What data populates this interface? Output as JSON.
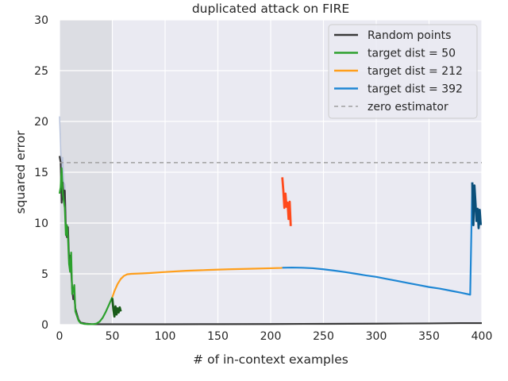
{
  "chart_data": {
    "type": "line",
    "title": "duplicated attack on FIRE",
    "xlabel": "# of in-context examples",
    "ylabel": "squared error",
    "xlim": [
      0,
      400
    ],
    "ylim": [
      0,
      30
    ],
    "xticks": [
      0,
      50,
      100,
      150,
      200,
      250,
      300,
      350,
      400
    ],
    "yticks": [
      0,
      5,
      10,
      15,
      20,
      25,
      30
    ],
    "grid": true,
    "legend_position": "top-right",
    "shaded_region": {
      "x": [
        0,
        50
      ],
      "color": "#dcdde3"
    },
    "colors": {
      "background": "#eaeaf2",
      "grid": "#ffffff"
    },
    "series": [
      {
        "name": "Random points",
        "color": "#3a3a3a",
        "values": [
          [
            0,
            16.6
          ],
          [
            1,
            16.0
          ],
          [
            2,
            12.0
          ],
          [
            3,
            14.0
          ],
          [
            4,
            12.5
          ],
          [
            5,
            13.2
          ],
          [
            6,
            9.5
          ],
          [
            7,
            8.6
          ],
          [
            8,
            9.6
          ],
          [
            9,
            6.5
          ],
          [
            10,
            6.8
          ],
          [
            11,
            5.4
          ],
          [
            12,
            3.5
          ],
          [
            13,
            2.5
          ],
          [
            14,
            2.8
          ],
          [
            15,
            1.6
          ],
          [
            16,
            1.2
          ],
          [
            18,
            0.5
          ],
          [
            20,
            0.2
          ],
          [
            25,
            0.1
          ],
          [
            30,
            0.05
          ],
          [
            40,
            0.04
          ],
          [
            50,
            0.04
          ],
          [
            100,
            0.04
          ],
          [
            150,
            0.05
          ],
          [
            200,
            0.06
          ],
          [
            250,
            0.08
          ],
          [
            300,
            0.1
          ],
          [
            350,
            0.12
          ],
          [
            380,
            0.15
          ],
          [
            400,
            0.15
          ]
        ]
      },
      {
        "name": "target dist = 50",
        "color": "#2ca02c",
        "values": [
          [
            0,
            12.9
          ],
          [
            1,
            13.5
          ],
          [
            2,
            15.4
          ],
          [
            3,
            13.0
          ],
          [
            4,
            12.2
          ],
          [
            5,
            11.5
          ],
          [
            6,
            8.8
          ],
          [
            7,
            9.8
          ],
          [
            8,
            8.5
          ],
          [
            9,
            6.0
          ],
          [
            10,
            5.2
          ],
          [
            11,
            7.1
          ],
          [
            12,
            3.0
          ],
          [
            13,
            3.3
          ],
          [
            14,
            3.9
          ],
          [
            15,
            1.3
          ],
          [
            16,
            1.0
          ],
          [
            18,
            0.4
          ],
          [
            20,
            0.15
          ],
          [
            23,
            0.08
          ],
          [
            27,
            0.05
          ],
          [
            32,
            0.05
          ],
          [
            35,
            0.1
          ],
          [
            38,
            0.3
          ],
          [
            41,
            0.7
          ],
          [
            44,
            1.3
          ],
          [
            47,
            2.0
          ],
          [
            50,
            2.7
          ]
        ]
      },
      {
        "name": "target dist = 212",
        "color": "#ff9f1c",
        "values": [
          [
            50,
            2.7
          ],
          [
            52,
            3.3
          ],
          [
            55,
            4.0
          ],
          [
            58,
            4.5
          ],
          [
            61,
            4.8
          ],
          [
            64,
            4.95
          ],
          [
            68,
            5.0
          ],
          [
            75,
            5.03
          ],
          [
            85,
            5.08
          ],
          [
            100,
            5.18
          ],
          [
            120,
            5.3
          ],
          [
            140,
            5.38
          ],
          [
            160,
            5.45
          ],
          [
            180,
            5.5
          ],
          [
            200,
            5.55
          ],
          [
            210,
            5.58
          ],
          [
            211,
            5.6
          ]
        ]
      },
      {
        "name": "target dist = 392",
        "color": "#1f87d4",
        "values": [
          [
            211,
            5.6
          ],
          [
            220,
            5.62
          ],
          [
            230,
            5.6
          ],
          [
            240,
            5.55
          ],
          [
            250,
            5.45
          ],
          [
            260,
            5.32
          ],
          [
            270,
            5.18
          ],
          [
            280,
            5.02
          ],
          [
            290,
            4.85
          ],
          [
            300,
            4.7
          ],
          [
            310,
            4.5
          ],
          [
            320,
            4.3
          ],
          [
            330,
            4.1
          ],
          [
            340,
            3.9
          ],
          [
            350,
            3.7
          ],
          [
            360,
            3.55
          ],
          [
            370,
            3.35
          ],
          [
            380,
            3.15
          ],
          [
            389,
            2.95
          ],
          [
            391,
            14.0
          ]
        ]
      },
      {
        "name": "zero estimator",
        "color": "#a0a0a0",
        "dashed": true,
        "values": [
          [
            0,
            15.95
          ],
          [
            400,
            15.95
          ]
        ]
      }
    ],
    "unlabeled_series": [
      {
        "color": "#1a5c1a",
        "values": [
          [
            50,
            2.6
          ],
          [
            51,
            1.5
          ],
          [
            52,
            0.8
          ],
          [
            53,
            1.8
          ],
          [
            54,
            1.0
          ],
          [
            55,
            1.6
          ],
          [
            56,
            1.2
          ],
          [
            57,
            1.7
          ],
          [
            58,
            1.3
          ]
        ]
      },
      {
        "color": "#ff4a1c",
        "values": [
          [
            211,
            14.5
          ],
          [
            212,
            13.2
          ],
          [
            213,
            11.5
          ],
          [
            214,
            12.9
          ],
          [
            215,
            11.6
          ],
          [
            216,
            12.0
          ],
          [
            217,
            10.4
          ],
          [
            218,
            12.1
          ],
          [
            219,
            9.7
          ]
        ]
      },
      {
        "color": "#0a4f7a",
        "values": [
          [
            391,
            14.0
          ],
          [
            392,
            9.8
          ],
          [
            393,
            13.7
          ],
          [
            394,
            12.0
          ],
          [
            395,
            10.2
          ],
          [
            396,
            11.4
          ],
          [
            397,
            9.5
          ],
          [
            398,
            11.3
          ],
          [
            399,
            9.8
          ]
        ]
      },
      {
        "color": "#b8c3dc",
        "values": [
          [
            0,
            20.5
          ],
          [
            1,
            17.5
          ],
          [
            2,
            15.0
          ],
          [
            3,
            16.5
          ],
          [
            4,
            14.0
          ],
          [
            5,
            13.8
          ],
          [
            6,
            11.0
          ]
        ]
      }
    ]
  }
}
